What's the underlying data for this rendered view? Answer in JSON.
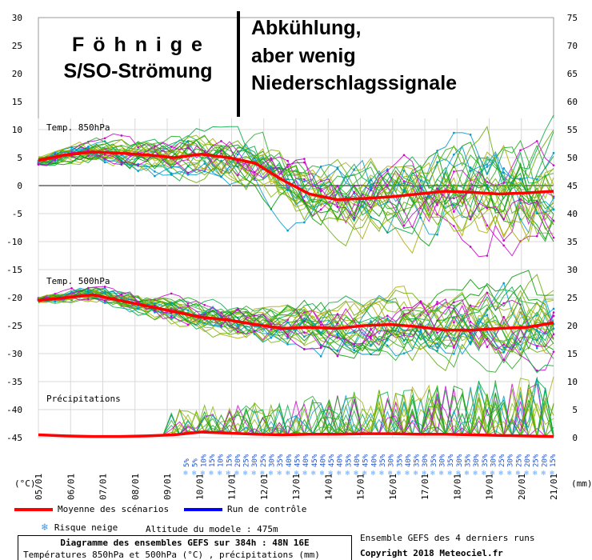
{
  "annotations": {
    "left_title_line1": "F ö h n i g e",
    "left_title_line2": "S/SO-Strömung",
    "right_line1": "Abkühlung,",
    "right_line2": "aber wenig",
    "right_line3": "Niederschlagssignale"
  },
  "chart_data": {
    "type": "line",
    "title": "Diagramme des ensembles GEFS sur 384h : 48N 16E",
    "subtitle": "Températures 850hPa et 500hPa (°C) , précipitations (mm)",
    "left_axis": {
      "label": "(°C)",
      "ticks": [
        30,
        25,
        20,
        15,
        10,
        5,
        0,
        -5,
        -10,
        -15,
        -20,
        -25,
        -30,
        -35,
        -40,
        -45
      ],
      "range": [
        -45,
        30
      ]
    },
    "right_axis": {
      "label": "(mm)",
      "ticks": [
        75,
        70,
        65,
        60,
        55,
        50,
        45,
        40,
        35,
        30,
        25,
        20,
        15,
        10,
        5,
        0
      ],
      "range": [
        0,
        75
      ]
    },
    "x_axis": {
      "ticks": [
        "05/01",
        "06/01",
        "07/01",
        "08/01",
        "09/01",
        "10/01",
        "11/01",
        "12/01",
        "13/01",
        "14/01",
        "15/01",
        "16/01",
        "17/01",
        "18/01",
        "19/01",
        "20/01",
        "21/01"
      ]
    },
    "panels": [
      {
        "label": "Temp. 850hPa",
        "mean": [
          4.5,
          5.5,
          6.0,
          5.8,
          5.5,
          5.0,
          5.6,
          5.0,
          4.0,
          1.0,
          -1.5,
          -2.5,
          -2.3,
          -2.0,
          -1.5,
          -1.0,
          -1.2,
          -1.5,
          -1.3,
          -1.0
        ]
      },
      {
        "label": "Temp. 500hPa",
        "mean": [
          -20.5,
          -20.0,
          -19.5,
          -20.5,
          -21.5,
          -22.5,
          -23.5,
          -24.0,
          -24.8,
          -25.5,
          -25.3,
          -25.5,
          -25.0,
          -24.8,
          -25.2,
          -25.8,
          -25.8,
          -25.5,
          -25.3,
          -24.5
        ]
      },
      {
        "label": "Précipitations",
        "mean": [
          0.5,
          0.3,
          0.2,
          0.2,
          0.3,
          0.5,
          1.0,
          0.8,
          0.6,
          0.5,
          0.6,
          0.6,
          0.7,
          0.7,
          0.6,
          0.6,
          0.5,
          0.4,
          0.3,
          0.2
        ]
      }
    ],
    "snow_risk_percent": [
      "5%",
      "5%",
      "10%",
      "15%",
      "10%",
      "15%",
      "20%",
      "25%",
      "30%",
      "25%",
      "30%",
      "35%",
      "40%",
      "45%",
      "40%",
      "45%",
      "40%",
      "45%",
      "40%",
      "35%",
      "40%",
      "45%",
      "40%",
      "35%",
      "30%",
      "35%",
      "40%",
      "35%",
      "30%",
      "35%",
      "30%",
      "35%",
      "30%",
      "35%",
      "30%",
      "35%",
      "30%",
      "25%",
      "30%",
      "25%",
      "20%",
      "25%",
      "20%",
      "15%"
    ],
    "legend": [
      {
        "name": "Moyenne des scénarios",
        "color": "#ff0000"
      },
      {
        "name": "Run de contrôle",
        "color": "#0000ff"
      },
      {
        "name": "Risque neige",
        "icon": "snowflake-icon"
      }
    ],
    "model_altitude": "Altitude du modele : 475m",
    "source_line1": "Ensemble GEFS des 4 derniers runs",
    "source_line2": "Copyright 2018 Meteociel.fr"
  }
}
